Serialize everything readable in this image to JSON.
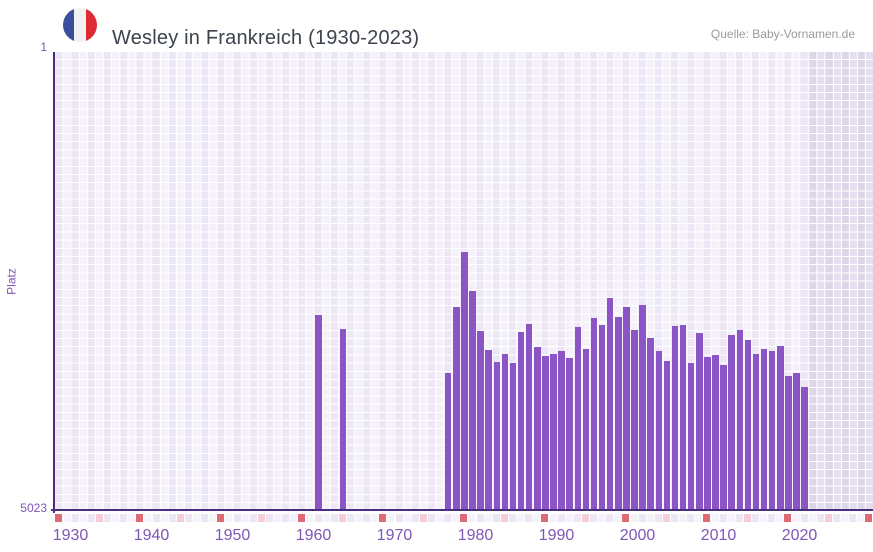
{
  "header": {
    "title": "Wesley in Frankreich (1930-2023)",
    "source": "Quelle: Baby-Vornamen.de",
    "flag_icon": "france-flag-circle-icon"
  },
  "chart_data": {
    "type": "bar",
    "title": "Wesley in Frankreich (1930-2023)",
    "xlabel": "",
    "ylabel": "Platz",
    "y_axis": {
      "top_label": "1",
      "bottom_label": "5023",
      "min": 1,
      "max": 5023,
      "inverted": true
    },
    "x_ticks": [
      "1930",
      "1940",
      "1950",
      "1960",
      "1970",
      "1980",
      "1990",
      "2000",
      "2010",
      "2020"
    ],
    "x_range": [
      1929,
      2030
    ],
    "grid": true,
    "legend": false,
    "note": "bars show rank (Platz) per year; no data before 1961, 1962-1963, 1965-1976 and after 2021; right band = years without data yet",
    "points": [
      {
        "year": 1961,
        "platz": 2880
      },
      {
        "year": 1964,
        "platz": 3030
      },
      {
        "year": 1977,
        "platz": 3510
      },
      {
        "year": 1978,
        "platz": 2790
      },
      {
        "year": 1979,
        "platz": 2190
      },
      {
        "year": 1980,
        "platz": 2620
      },
      {
        "year": 1981,
        "platz": 3050
      },
      {
        "year": 1982,
        "platz": 3260
      },
      {
        "year": 1983,
        "platz": 3390
      },
      {
        "year": 1984,
        "platz": 3310
      },
      {
        "year": 1985,
        "platz": 3400
      },
      {
        "year": 1986,
        "platz": 3060
      },
      {
        "year": 1987,
        "platz": 2980
      },
      {
        "year": 1988,
        "platz": 3230
      },
      {
        "year": 1989,
        "platz": 3330
      },
      {
        "year": 1990,
        "platz": 3300
      },
      {
        "year": 1991,
        "platz": 3270
      },
      {
        "year": 1992,
        "platz": 3350
      },
      {
        "year": 1993,
        "platz": 3010
      },
      {
        "year": 1994,
        "platz": 3250
      },
      {
        "year": 1995,
        "platz": 2910
      },
      {
        "year": 1996,
        "platz": 2990
      },
      {
        "year": 1997,
        "platz": 2690
      },
      {
        "year": 1998,
        "platz": 2900
      },
      {
        "year": 1999,
        "platz": 2790
      },
      {
        "year": 2000,
        "platz": 3040
      },
      {
        "year": 2001,
        "platz": 2770
      },
      {
        "year": 2002,
        "platz": 3130
      },
      {
        "year": 2003,
        "platz": 3270
      },
      {
        "year": 2004,
        "platz": 3380
      },
      {
        "year": 2005,
        "platz": 3000
      },
      {
        "year": 2006,
        "platz": 2990
      },
      {
        "year": 2007,
        "platz": 3400
      },
      {
        "year": 2008,
        "platz": 3080
      },
      {
        "year": 2009,
        "platz": 3340
      },
      {
        "year": 2010,
        "platz": 3320
      },
      {
        "year": 2011,
        "platz": 3420
      },
      {
        "year": 2012,
        "platz": 3100
      },
      {
        "year": 2013,
        "platz": 3040
      },
      {
        "year": 2014,
        "platz": 3150
      },
      {
        "year": 2015,
        "platz": 3300
      },
      {
        "year": 2016,
        "platz": 3250
      },
      {
        "year": 2017,
        "platz": 3270
      },
      {
        "year": 2018,
        "platz": 3220
      },
      {
        "year": 2019,
        "platz": 3550
      },
      {
        "year": 2020,
        "platz": 3510
      },
      {
        "year": 2021,
        "platz": 3670
      }
    ]
  },
  "tick_strip": {
    "red_years": [
      1929,
      1939,
      1949,
      1959,
      1969,
      1979,
      1989,
      1999,
      2009,
      2019,
      2029
    ],
    "pink_years": [
      1934,
      1944,
      1954,
      1964,
      1974,
      1984,
      1994,
      2004,
      2014,
      2024
    ]
  },
  "colors": {
    "bar": "#8b55c5",
    "axis_line": "#4b2c83",
    "tick_label": "#7e56b6",
    "title_text": "#3c434e",
    "source_text": "#9a9a9a",
    "grid_cell_a": "#ece6f5",
    "grid_cell_b": "#f4f1fb",
    "future_band_a": "#dcd6e7",
    "future_band_b": "#e4dfef",
    "strip_red": "#e06975",
    "strip_pink": "#f3ced8",
    "strip_even": "#f5f2fa",
    "strip_odd": "#ebe5f4",
    "flag_blue": "#3b4e9b",
    "flag_white": "#f1f1f4",
    "flag_red": "#dd2a33"
  }
}
